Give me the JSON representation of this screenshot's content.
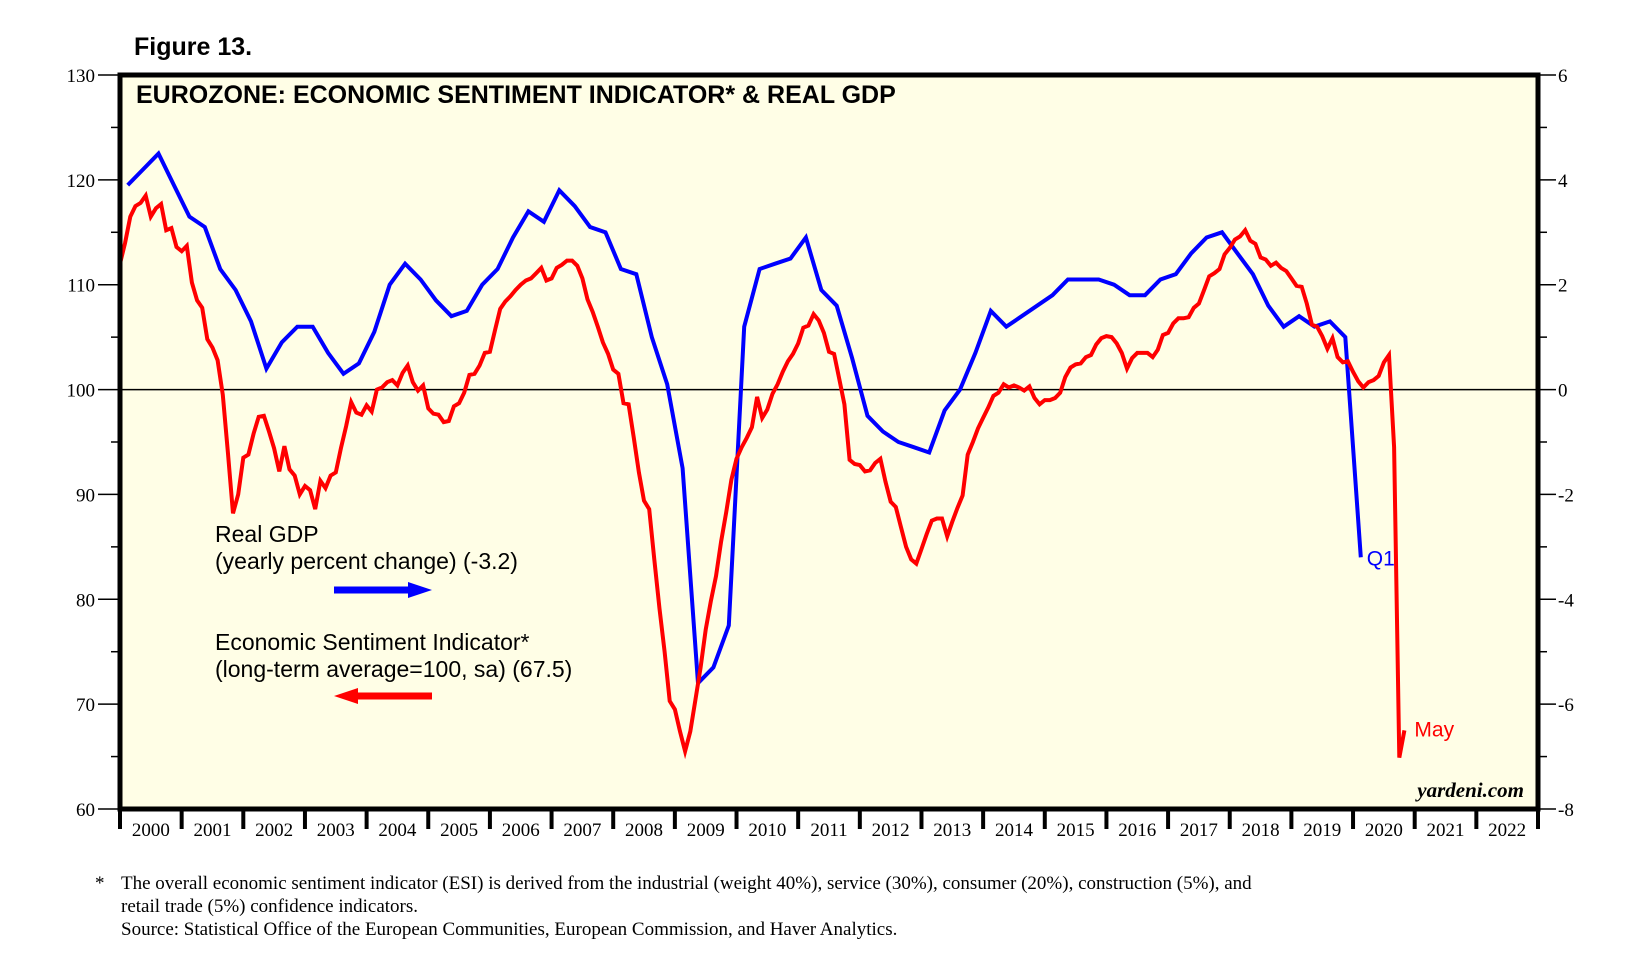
{
  "figure_label": "Figure 13.",
  "chart_data": {
    "type": "line",
    "title": "EUROZONE: ECONOMIC SENTIMENT INDICATOR* & REAL GDP",
    "left_axis": {
      "label": "",
      "range": [
        60,
        130
      ],
      "ticks": [
        60,
        70,
        80,
        90,
        100,
        110,
        120,
        130
      ],
      "tick_labels": [
        "60",
        "70",
        "80",
        "90",
        "100",
        "110",
        "120",
        "130"
      ]
    },
    "right_axis": {
      "label": "",
      "range": [
        -8,
        6
      ],
      "ticks": [
        -8,
        -6,
        -4,
        -2,
        0,
        2,
        4,
        6
      ],
      "tick_labels": [
        "-8",
        "-6",
        "-4",
        "-2",
        "0",
        "2",
        "4",
        "6"
      ]
    },
    "x_axis": {
      "range": [
        2000,
        2023
      ],
      "tick_labels": [
        "2000",
        "2001",
        "2002",
        "2003",
        "2004",
        "2005",
        "2006",
        "2007",
        "2008",
        "2009",
        "2010",
        "2011",
        "2012",
        "2013",
        "2014",
        "2015",
        "2016",
        "2017",
        "2018",
        "2019",
        "2020",
        "2021",
        "2022"
      ]
    },
    "reference_line": {
      "axis": "left",
      "value": 100
    },
    "grid": false,
    "background": "#fffee6",
    "series": [
      {
        "name": "Real GDP",
        "legend_lines": [
          "Real GDP",
          "(yearly percent change) (-3.2)"
        ],
        "axis": "right",
        "color": "#0000ff",
        "frequency": "quarterly",
        "start": 2000.0,
        "end_label": "Q1",
        "latest_value": -3.2,
        "values": [
          3.9,
          4.2,
          4.5,
          3.9,
          3.3,
          3.1,
          2.3,
          1.9,
          1.3,
          0.4,
          0.9,
          1.2,
          1.2,
          0.7,
          0.3,
          0.5,
          1.1,
          2.0,
          2.4,
          2.1,
          1.7,
          1.4,
          1.5,
          2.0,
          2.3,
          2.9,
          3.4,
          3.2,
          3.8,
          3.5,
          3.1,
          3.0,
          2.3,
          2.2,
          1.0,
          0.1,
          -1.5,
          -5.6,
          -5.3,
          -4.5,
          1.2,
          2.3,
          2.4,
          2.5,
          2.9,
          1.9,
          1.6,
          0.6,
          -0.5,
          -0.8,
          -1.0,
          -1.1,
          -1.2,
          -0.4,
          0.0,
          0.7,
          1.5,
          1.2,
          1.4,
          1.6,
          1.8,
          2.1,
          2.1,
          2.1,
          2.0,
          1.8,
          1.8,
          2.1,
          2.2,
          2.6,
          2.9,
          3.0,
          2.6,
          2.2,
          1.6,
          1.2,
          1.4,
          1.2,
          1.3,
          1.0,
          -3.2
        ]
      },
      {
        "name": "Economic Sentiment Indicator*",
        "legend_lines": [
          "Economic Sentiment Indicator*",
          "(long-term average=100, sa) (67.5)"
        ],
        "axis": "left",
        "color": "#ff0000",
        "frequency": "monthly",
        "start": 2000.0,
        "end_label": "May",
        "latest_value": 67.5,
        "values": [
          112.0,
          114.0,
          116.5,
          117.5,
          117.8,
          118.5,
          116.5,
          117.3,
          117.7,
          115.2,
          115.4,
          113.6,
          113.2,
          113.7,
          110.2,
          108.5,
          107.8,
          104.8,
          104.0,
          102.8,
          99.5,
          94.0,
          88.2,
          90.0,
          93.5,
          93.8,
          95.8,
          97.4,
          97.5,
          96.0,
          94.4,
          92.2,
          94.6,
          92.4,
          91.8,
          90.0,
          90.8,
          90.4,
          88.6,
          91.3,
          90.6,
          91.8,
          92.1,
          94.4,
          96.5,
          98.8,
          97.8,
          97.6,
          98.5,
          97.9,
          100.0,
          100.2,
          100.7,
          100.9,
          100.4,
          101.6,
          102.3,
          100.7,
          99.9,
          100.4,
          98.2,
          97.7,
          97.6,
          96.9,
          97.0,
          98.4,
          98.7,
          99.7,
          101.4,
          101.5,
          102.3,
          103.5,
          103.6,
          105.7,
          107.7,
          108.4,
          108.9,
          109.5,
          110.0,
          110.4,
          110.6,
          111.1,
          111.6,
          110.4,
          110.6,
          111.6,
          111.9,
          112.3,
          112.3,
          111.8,
          110.6,
          108.6,
          107.4,
          106.0,
          104.5,
          103.4,
          101.9,
          101.5,
          98.7,
          98.6,
          95.4,
          92.1,
          89.4,
          88.6,
          83.8,
          79.1,
          75.0,
          70.3,
          69.5,
          67.4,
          65.5,
          67.4,
          70.4,
          73.5,
          77.1,
          79.8,
          82.2,
          85.5,
          88.3,
          91.4,
          93.4,
          94.5,
          95.4,
          96.4,
          99.3,
          97.3,
          98.1,
          99.6,
          100.5,
          101.7,
          102.7,
          103.4,
          104.4,
          105.9,
          106.1,
          107.2,
          106.6,
          105.4,
          103.6,
          103.4,
          101.0,
          98.6,
          93.3,
          92.9,
          92.8,
          92.2,
          92.3,
          93.0,
          93.4,
          91.2,
          89.3,
          88.8,
          86.9,
          85.0,
          83.8,
          83.4,
          84.8,
          86.2,
          87.5,
          87.7,
          87.7,
          86.0,
          87.4,
          88.7,
          89.9,
          93.8,
          95.0,
          96.3,
          97.3,
          98.3,
          99.4,
          99.7,
          100.5,
          100.2,
          100.4,
          100.2,
          99.9,
          100.3,
          99.2,
          98.6,
          99.0,
          99.0,
          99.2,
          99.7,
          101.2,
          102.1,
          102.4,
          102.5,
          103.1,
          103.3,
          104.3,
          104.9,
          105.1,
          105.0,
          104.4,
          103.5,
          102.0,
          103.0,
          103.5,
          103.5,
          103.5,
          103.1,
          103.8,
          105.2,
          105.4,
          106.3,
          106.8,
          106.8,
          106.9,
          107.8,
          108.2,
          109.5,
          110.8,
          111.1,
          111.5,
          112.9,
          113.5,
          114.3,
          114.6,
          115.2,
          114.2,
          113.9,
          112.6,
          112.4,
          111.8,
          112.1,
          111.6,
          111.3,
          110.6,
          109.9,
          109.8,
          108.2,
          106.2,
          106.0,
          105.1,
          103.9,
          104.9,
          103.1,
          102.6,
          102.7,
          101.7,
          100.8,
          100.2,
          100.7,
          100.9,
          101.3,
          102.6,
          103.3,
          94.5,
          64.9,
          67.5
        ]
      }
    ],
    "legend_placement": "left-middle",
    "watermark": "yardeni.com"
  },
  "footnote": {
    "marker": "*",
    "line1": "The overall economic sentiment indicator (ESI) is derived from the industrial (weight 40%), service (30%), consumer (20%), construction (5%), and",
    "line2": "retail trade (5%) confidence indicators.",
    "line3": "Source: Statistical Office of the European Communities, European Commission, and Haver Analytics."
  }
}
